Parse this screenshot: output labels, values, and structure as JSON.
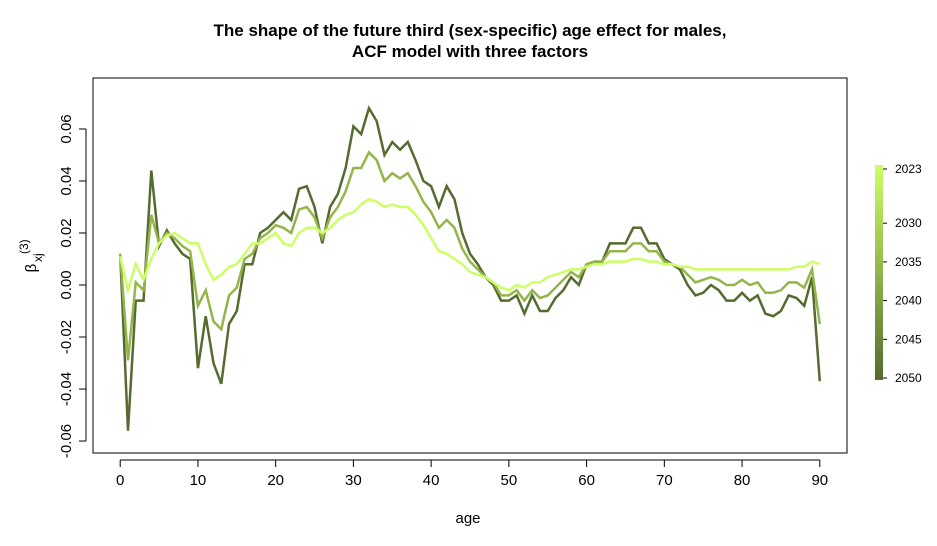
{
  "chart_data": {
    "type": "line",
    "title": [
      "The shape of the future third (sex-specific) age effect for males,",
      "ACF model with three factors"
    ],
    "xlabel": "age",
    "ylabel": {
      "symbol": "β",
      "superscript": "(3)",
      "subscript": "xj"
    },
    "x": [
      0,
      1,
      2,
      3,
      4,
      5,
      6,
      7,
      8,
      9,
      10,
      11,
      12,
      13,
      14,
      15,
      16,
      17,
      18,
      19,
      20,
      21,
      22,
      23,
      24,
      25,
      26,
      27,
      28,
      29,
      30,
      31,
      32,
      33,
      34,
      35,
      36,
      37,
      38,
      39,
      40,
      41,
      42,
      43,
      44,
      45,
      46,
      47,
      48,
      49,
      50,
      51,
      52,
      53,
      54,
      55,
      56,
      57,
      58,
      59,
      60,
      61,
      62,
      63,
      64,
      65,
      66,
      67,
      68,
      69,
      70,
      71,
      72,
      73,
      74,
      75,
      76,
      77,
      78,
      79,
      80,
      81,
      82,
      83,
      84,
      85,
      86,
      87,
      88,
      89,
      90
    ],
    "series": [
      {
        "name": "2050",
        "color": "#556b2f",
        "values": [
          0.012,
          -0.056,
          -0.006,
          -0.006,
          0.044,
          0.015,
          0.021,
          0.016,
          0.012,
          0.01,
          -0.032,
          -0.012,
          -0.03,
          -0.038,
          -0.015,
          -0.01,
          0.008,
          0.008,
          0.02,
          0.022,
          0.025,
          0.028,
          0.025,
          0.037,
          0.038,
          0.03,
          0.016,
          0.03,
          0.035,
          0.045,
          0.061,
          0.058,
          0.068,
          0.063,
          0.05,
          0.055,
          0.052,
          0.055,
          0.048,
          0.04,
          0.038,
          0.03,
          0.038,
          0.033,
          0.02,
          0.012,
          0.008,
          0.003,
          0.0,
          -0.006,
          -0.006,
          -0.004,
          -0.011,
          -0.004,
          -0.01,
          -0.01,
          -0.005,
          -0.002,
          0.003,
          0.0,
          0.008,
          0.009,
          0.009,
          0.016,
          0.016,
          0.016,
          0.022,
          0.022,
          0.016,
          0.016,
          0.01,
          0.008,
          0.006,
          0.0,
          -0.004,
          -0.003,
          0.0,
          -0.002,
          -0.006,
          -0.006,
          -0.003,
          -0.006,
          -0.004,
          -0.011,
          -0.012,
          -0.01,
          -0.004,
          -0.005,
          -0.008,
          0.003,
          -0.037
        ]
      },
      {
        "name": "2035",
        "color": "#94b54a",
        "values": [
          0.012,
          -0.029,
          0.001,
          -0.002,
          0.027,
          0.016,
          0.02,
          0.018,
          0.015,
          0.013,
          -0.008,
          -0.002,
          -0.014,
          -0.017,
          -0.004,
          -0.001,
          0.01,
          0.012,
          0.018,
          0.02,
          0.023,
          0.022,
          0.02,
          0.029,
          0.03,
          0.026,
          0.018,
          0.026,
          0.03,
          0.036,
          0.045,
          0.045,
          0.051,
          0.048,
          0.04,
          0.043,
          0.041,
          0.043,
          0.038,
          0.032,
          0.028,
          0.022,
          0.025,
          0.022,
          0.014,
          0.009,
          0.006,
          0.003,
          0.001,
          -0.004,
          -0.004,
          -0.002,
          -0.006,
          -0.002,
          -0.005,
          -0.004,
          -0.001,
          0.002,
          0.005,
          0.003,
          0.008,
          0.009,
          0.009,
          0.013,
          0.013,
          0.013,
          0.016,
          0.016,
          0.013,
          0.013,
          0.009,
          0.008,
          0.007,
          0.004,
          0.001,
          0.002,
          0.003,
          0.002,
          0.0,
          0.0,
          0.002,
          0.0,
          0.001,
          -0.003,
          -0.003,
          -0.002,
          0.001,
          0.001,
          -0.001,
          0.006,
          -0.015
        ]
      },
      {
        "name": "2023",
        "color": "#ccff66",
        "values": [
          0.011,
          -0.002,
          0.008,
          0.002,
          0.01,
          0.016,
          0.019,
          0.02,
          0.018,
          0.016,
          0.016,
          0.008,
          0.002,
          0.004,
          0.007,
          0.008,
          0.012,
          0.016,
          0.016,
          0.018,
          0.02,
          0.016,
          0.015,
          0.02,
          0.022,
          0.022,
          0.02,
          0.022,
          0.025,
          0.027,
          0.028,
          0.031,
          0.033,
          0.032,
          0.03,
          0.031,
          0.03,
          0.03,
          0.027,
          0.023,
          0.018,
          0.013,
          0.012,
          0.01,
          0.008,
          0.005,
          0.004,
          0.003,
          0.001,
          -0.001,
          -0.002,
          0.0,
          -0.001,
          0.001,
          0.001,
          0.003,
          0.004,
          0.005,
          0.006,
          0.006,
          0.007,
          0.008,
          0.008,
          0.009,
          0.009,
          0.009,
          0.01,
          0.01,
          0.009,
          0.009,
          0.008,
          0.008,
          0.007,
          0.007,
          0.006,
          0.006,
          0.006,
          0.006,
          0.006,
          0.006,
          0.006,
          0.006,
          0.006,
          0.006,
          0.006,
          0.006,
          0.006,
          0.007,
          0.007,
          0.009,
          0.008
        ]
      }
    ],
    "xlim": [
      -3.5,
      93.5
    ],
    "xticks": [
      0,
      10,
      20,
      30,
      40,
      50,
      60,
      70,
      80,
      90
    ],
    "ylim": [
      -0.0646,
      0.0796
    ],
    "yticks": [
      -0.06,
      -0.04,
      -0.02,
      {
        "value": 0,
        "label": "0.00"
      },
      0.02,
      0.04,
      0.06
    ],
    "colorbar": {
      "range": [
        2023,
        2050
      ],
      "colors": [
        "#ccff66",
        "#556b2f"
      ],
      "ticks": [
        2023,
        2030,
        2035,
        2040,
        2045,
        2050
      ]
    }
  }
}
